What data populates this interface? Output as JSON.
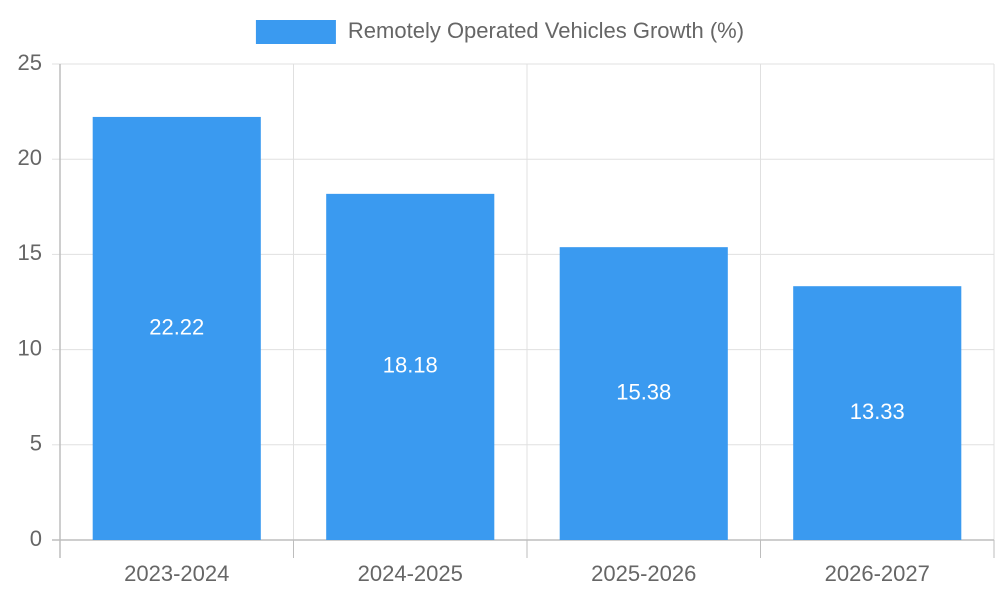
{
  "chart_data": {
    "type": "bar",
    "title": "",
    "xlabel": "",
    "ylabel": "",
    "categories": [
      "2023-2024",
      "2024-2025",
      "2025-2026",
      "2026-2027"
    ],
    "series": [
      {
        "name": "Remotely Operated Vehicles Growth (%)",
        "values": [
          22.22,
          18.18,
          15.38,
          13.33
        ],
        "data_labels": [
          "22.22",
          "18.18",
          "15.38",
          "13.33"
        ]
      }
    ],
    "ylim": [
      0,
      25
    ],
    "yticks": [
      0,
      5,
      10,
      15,
      20,
      25
    ],
    "ytick_labels": [
      "0",
      "5",
      "10",
      "15",
      "20",
      "25"
    ],
    "grid": true,
    "legend_position": "top-center",
    "colors": {
      "bar": "#3a9af0",
      "grid": "#e0e0e0",
      "axis": "#bdbdbd",
      "text": "#666666",
      "data_label": "#ffffff"
    }
  }
}
